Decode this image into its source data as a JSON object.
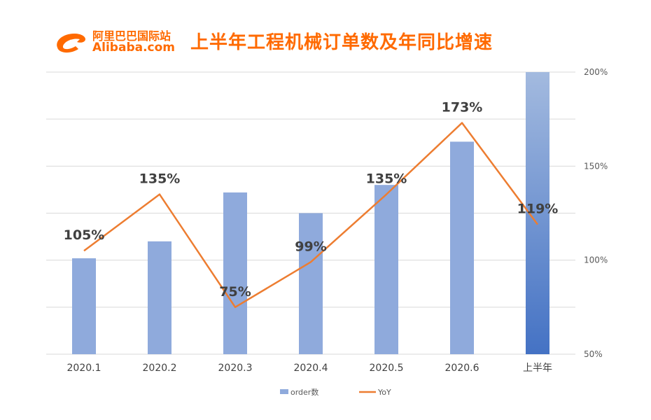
{
  "header": {
    "logo_cn": "阿里巴巴国际站",
    "logo_en": "Alibaba.com",
    "title": "上半年工程机械订单数及年同比增速"
  },
  "colors": {
    "bar": "#8faadc",
    "bar_gradient_top": "#a3badf",
    "bar_gradient_bottom": "#4472c4",
    "line": "#ed7d31",
    "brand": "#ff6a00",
    "grid": "#d9d9d9"
  },
  "chart_data": {
    "type": "bar",
    "categories": [
      "2020.1",
      "2020.2",
      "2020.3",
      "2020.4",
      "2020.5",
      "2020.6",
      "上半年"
    ],
    "series": [
      {
        "name": "order数",
        "kind": "bar",
        "axis": "right",
        "values": [
          101,
          110,
          136,
          125,
          140,
          163,
          200
        ],
        "highlight_last_with_gradient": true
      },
      {
        "name": "YoY",
        "kind": "line",
        "axis": "right",
        "values": [
          105,
          135,
          75,
          99,
          135,
          173,
          119
        ],
        "labels": [
          "105%",
          "135%",
          "75%",
          "99%",
          "135%",
          "173%",
          "119%"
        ]
      }
    ],
    "y_right": {
      "min": 50,
      "max": 200,
      "ticks": [
        50,
        100,
        150,
        200
      ],
      "tick_labels": [
        "50%",
        "100%",
        "150%",
        "200%"
      ]
    },
    "grid": true,
    "legend_position": "bottom",
    "legend": [
      {
        "name": "order数",
        "kind": "bar"
      },
      {
        "name": "YoY",
        "kind": "line"
      }
    ]
  }
}
